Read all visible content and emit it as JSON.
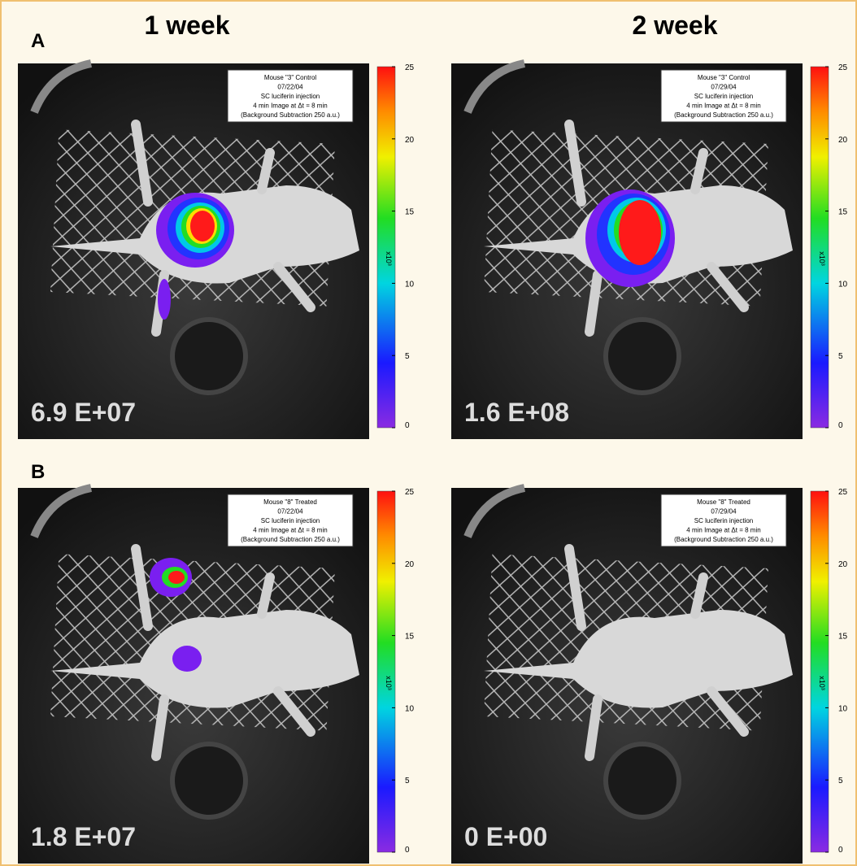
{
  "columns": [
    "1 week",
    "2 week"
  ],
  "colorbar": {
    "ticks": [
      0,
      5,
      10,
      15,
      20,
      25
    ],
    "unit": "x10³"
  },
  "rows": [
    {
      "label": "A",
      "panels": [
        {
          "info": [
            "Mouse \"3\" Control",
            "07/22/04",
            "SC luciferin injection",
            "4 min Image at Δt = 8 min",
            "(Background Subtraction 250 a.u.)"
          ],
          "total": "6.9 E+07"
        },
        {
          "info": [
            "Mouse \"3\" Control",
            "07/29/04",
            "SC luciferin injection",
            "4 min Image at Δt = 8 min",
            "(Background Subtraction 250 a.u.)"
          ],
          "total": "1.6 E+08"
        }
      ]
    },
    {
      "label": "B",
      "panels": [
        {
          "info": [
            "Mouse \"8\" Treated",
            "07/22/04",
            "SC luciferin injection",
            "4 min Image at Δt = 8 min",
            "(Background Subtraction 250 a.u.)"
          ],
          "total": "1.8 E+07"
        },
        {
          "info": [
            "Mouse \"8\" Treated",
            "07/29/04",
            "SC luciferin injection",
            "4 min Image at Δt = 8 min",
            "(Background Subtraction 250 a.u.)"
          ],
          "total": "0 E+00"
        }
      ]
    }
  ]
}
